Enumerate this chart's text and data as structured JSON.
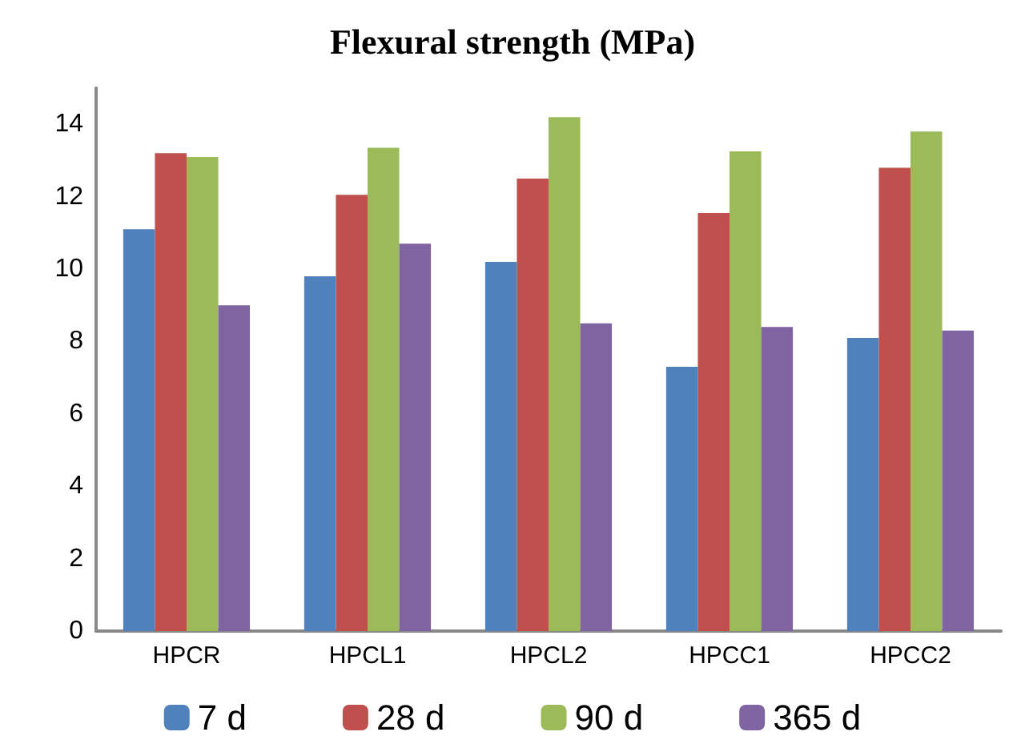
{
  "chart_data": {
    "type": "bar",
    "title": "Flexural strength (MPa)",
    "categories": [
      "HPCR",
      "HPCL1",
      "HPCL2",
      "HPCC1",
      "HPCC2"
    ],
    "series": [
      {
        "name": "7 d",
        "color": "#4f81bd",
        "values": [
          11.1,
          9.8,
          10.2,
          7.3,
          8.1
        ]
      },
      {
        "name": "28 d",
        "color": "#c0504d",
        "values": [
          13.2,
          12.05,
          12.5,
          11.55,
          12.8
        ]
      },
      {
        "name": "90 d",
        "color": "#9bbb59",
        "values": [
          13.1,
          13.35,
          14.2,
          13.25,
          13.8
        ]
      },
      {
        "name": "365 d",
        "color": "#8064a2",
        "values": [
          9.0,
          10.7,
          8.5,
          8.4,
          8.3
        ]
      }
    ],
    "ylim": [
      0,
      15
    ],
    "yticks": [
      0,
      2,
      4,
      6,
      8,
      10,
      12,
      14
    ],
    "grid": false,
    "legend": "bottom"
  }
}
